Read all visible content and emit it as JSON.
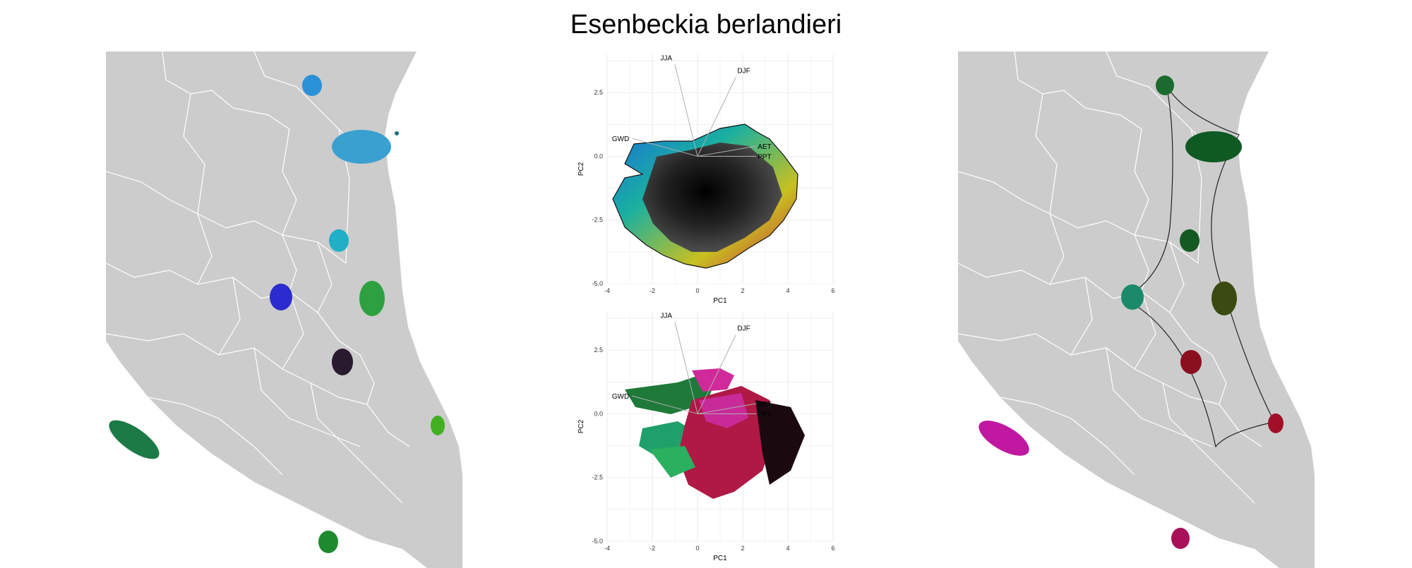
{
  "title": "Esenbeckia berlandieri",
  "colors": {
    "land": "#cccccc",
    "border": "#ffffff",
    "grid": "#e8e8e8",
    "vector": "#b0b0b0"
  },
  "chart_data": [
    {
      "type": "scatter",
      "panel": "pca-top",
      "xlabel": "PC1",
      "ylabel": "PC2",
      "xlim": [
        -4,
        6
      ],
      "ylim": [
        -5,
        4
      ],
      "xticks": [
        "-4",
        "-2",
        "0",
        "2",
        "4",
        "6"
      ],
      "yticks": [
        "-5.0",
        "-2.5",
        "0.0",
        "2.5"
      ],
      "grid": true,
      "vectors": [
        {
          "name": "JJA",
          "x": -1.0,
          "y": 3.6
        },
        {
          "name": "DJF",
          "x": 1.7,
          "y": 3.1
        },
        {
          "name": "GWD",
          "x": -2.9,
          "y": 0.7
        },
        {
          "name": "AET",
          "x": 2.6,
          "y": 0.4
        },
        {
          "name": "PPT",
          "x": 2.6,
          "y": 0.0
        }
      ]
    },
    {
      "type": "scatter",
      "panel": "pca-bottom",
      "xlabel": "PC1",
      "ylabel": "PC2",
      "xlim": [
        -4,
        6
      ],
      "ylim": [
        -5,
        4
      ],
      "xticks": [
        "-4",
        "-2",
        "0",
        "2",
        "4",
        "6"
      ],
      "yticks": [
        "-5.0",
        "-2.5",
        "0.0",
        "2.5"
      ],
      "grid": true,
      "vectors": [
        {
          "name": "JJA",
          "x": -1.0,
          "y": 3.6
        },
        {
          "name": "DJF",
          "x": 1.7,
          "y": 3.1
        },
        {
          "name": "GWD",
          "x": -2.9,
          "y": 0.7
        },
        {
          "name": "AET",
          "x": 2.6,
          "y": 0.4
        },
        {
          "name": "PPT",
          "x": 2.6,
          "y": 0.0
        }
      ]
    }
  ]
}
